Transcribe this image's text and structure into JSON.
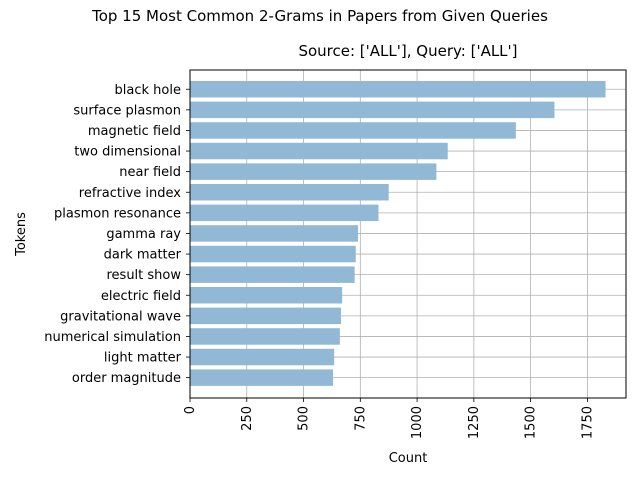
{
  "figure": {
    "suptitle": "Top 15 Most Common 2-Grams in Papers from Given Queries"
  },
  "chart_data": {
    "type": "bar",
    "orientation": "horizontal",
    "title": "Source: ['ALL'], Query: ['ALL']",
    "xlabel": "Count",
    "ylabel": "Tokens",
    "categories": [
      "black hole",
      "surface plasmon",
      "magnetic field",
      "two dimensional",
      "near field",
      "refractive index",
      "plasmon resonance",
      "gamma ray",
      "dark matter",
      "result show",
      "electric field",
      "gravitational wave",
      "numerical simulation",
      "light matter",
      "order magnitude"
    ],
    "values": [
      1830,
      1605,
      1435,
      1135,
      1085,
      875,
      830,
      740,
      730,
      725,
      670,
      665,
      660,
      635,
      630
    ],
    "xlim": [
      0,
      1920
    ],
    "xticks": [
      0,
      250,
      500,
      750,
      1000,
      1250,
      1500,
      1750
    ],
    "grid": true,
    "bar_color": "#91b9d6"
  }
}
